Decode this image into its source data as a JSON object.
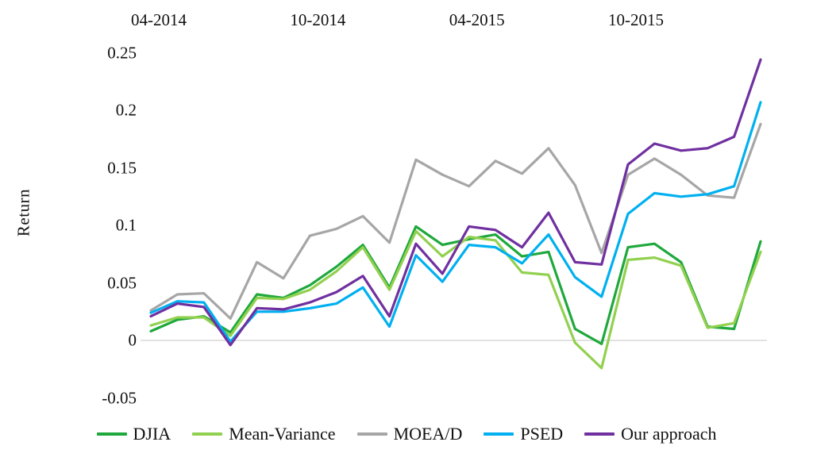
{
  "chart_data": {
    "type": "line",
    "title": "",
    "ylabel": "Return",
    "xlabel": "",
    "x": [
      "04-2014",
      "05-2014",
      "06-2014",
      "07-2014",
      "08-2014",
      "09-2014",
      "10-2014",
      "11-2014",
      "12-2014",
      "01-2015",
      "02-2015",
      "03-2015",
      "04-2015",
      "05-2015",
      "06-2015",
      "07-2015",
      "08-2015",
      "09-2015",
      "10-2015",
      "11-2015",
      "12-2015",
      "01-2016",
      "02-2016",
      "03-2016"
    ],
    "x_tick_labels": [
      "04-2014",
      "10-2014",
      "04-2015",
      "10-2015"
    ],
    "x_tick_indices": [
      0,
      6,
      12,
      18
    ],
    "y_tick_labels": [
      "0.25",
      "0.2",
      "0.15",
      "0.1",
      "0.05",
      "0",
      "-0.05"
    ],
    "y_tick_values": [
      0.25,
      0.2,
      0.15,
      0.1,
      0.05,
      0,
      -0.05
    ],
    "ylim": [
      -0.05,
      0.25
    ],
    "grid": "zero-baseline-only",
    "legend_position": "bottom",
    "series": [
      {
        "name": "DJIA",
        "color": "#1FA83C",
        "values": [
          0.008,
          0.018,
          0.021,
          0.007,
          0.04,
          0.037,
          0.048,
          0.064,
          0.083,
          0.046,
          0.099,
          0.083,
          0.088,
          0.092,
          0.073,
          0.077,
          0.01,
          -0.003,
          0.081,
          0.084,
          0.068,
          0.012,
          0.01,
          0.086
        ]
      },
      {
        "name": "Mean-Variance",
        "color": "#92D050",
        "values": [
          0.013,
          0.02,
          0.02,
          0.004,
          0.037,
          0.036,
          0.044,
          0.06,
          0.081,
          0.044,
          0.095,
          0.073,
          0.09,
          0.087,
          0.059,
          0.057,
          -0.002,
          -0.024,
          0.07,
          0.072,
          0.065,
          0.011,
          0.015,
          0.077
        ]
      },
      {
        "name": "MOEA/D",
        "color": "#A6A6A6",
        "values": [
          0.026,
          0.04,
          0.041,
          0.019,
          0.068,
          0.054,
          0.091,
          0.097,
          0.108,
          0.085,
          0.157,
          0.144,
          0.134,
          0.156,
          0.145,
          0.167,
          0.135,
          0.076,
          0.144,
          0.158,
          0.144,
          0.126,
          0.124,
          0.188
        ]
      },
      {
        "name": "PSED",
        "color": "#00B0F0",
        "values": [
          0.024,
          0.034,
          0.033,
          -0.001,
          0.025,
          0.025,
          0.028,
          0.032,
          0.046,
          0.012,
          0.074,
          0.051,
          0.083,
          0.081,
          0.067,
          0.092,
          0.055,
          0.038,
          0.11,
          0.128,
          0.125,
          0.127,
          0.134,
          0.207
        ]
      },
      {
        "name": "Our approach",
        "color": "#7030A0",
        "values": [
          0.021,
          0.032,
          0.029,
          -0.004,
          0.028,
          0.027,
          0.033,
          0.042,
          0.056,
          0.021,
          0.084,
          0.058,
          0.099,
          0.096,
          0.081,
          0.111,
          0.068,
          0.066,
          0.153,
          0.171,
          0.165,
          0.167,
          0.177,
          0.244
        ]
      }
    ],
    "baseline_color": "#D9D9D9"
  }
}
